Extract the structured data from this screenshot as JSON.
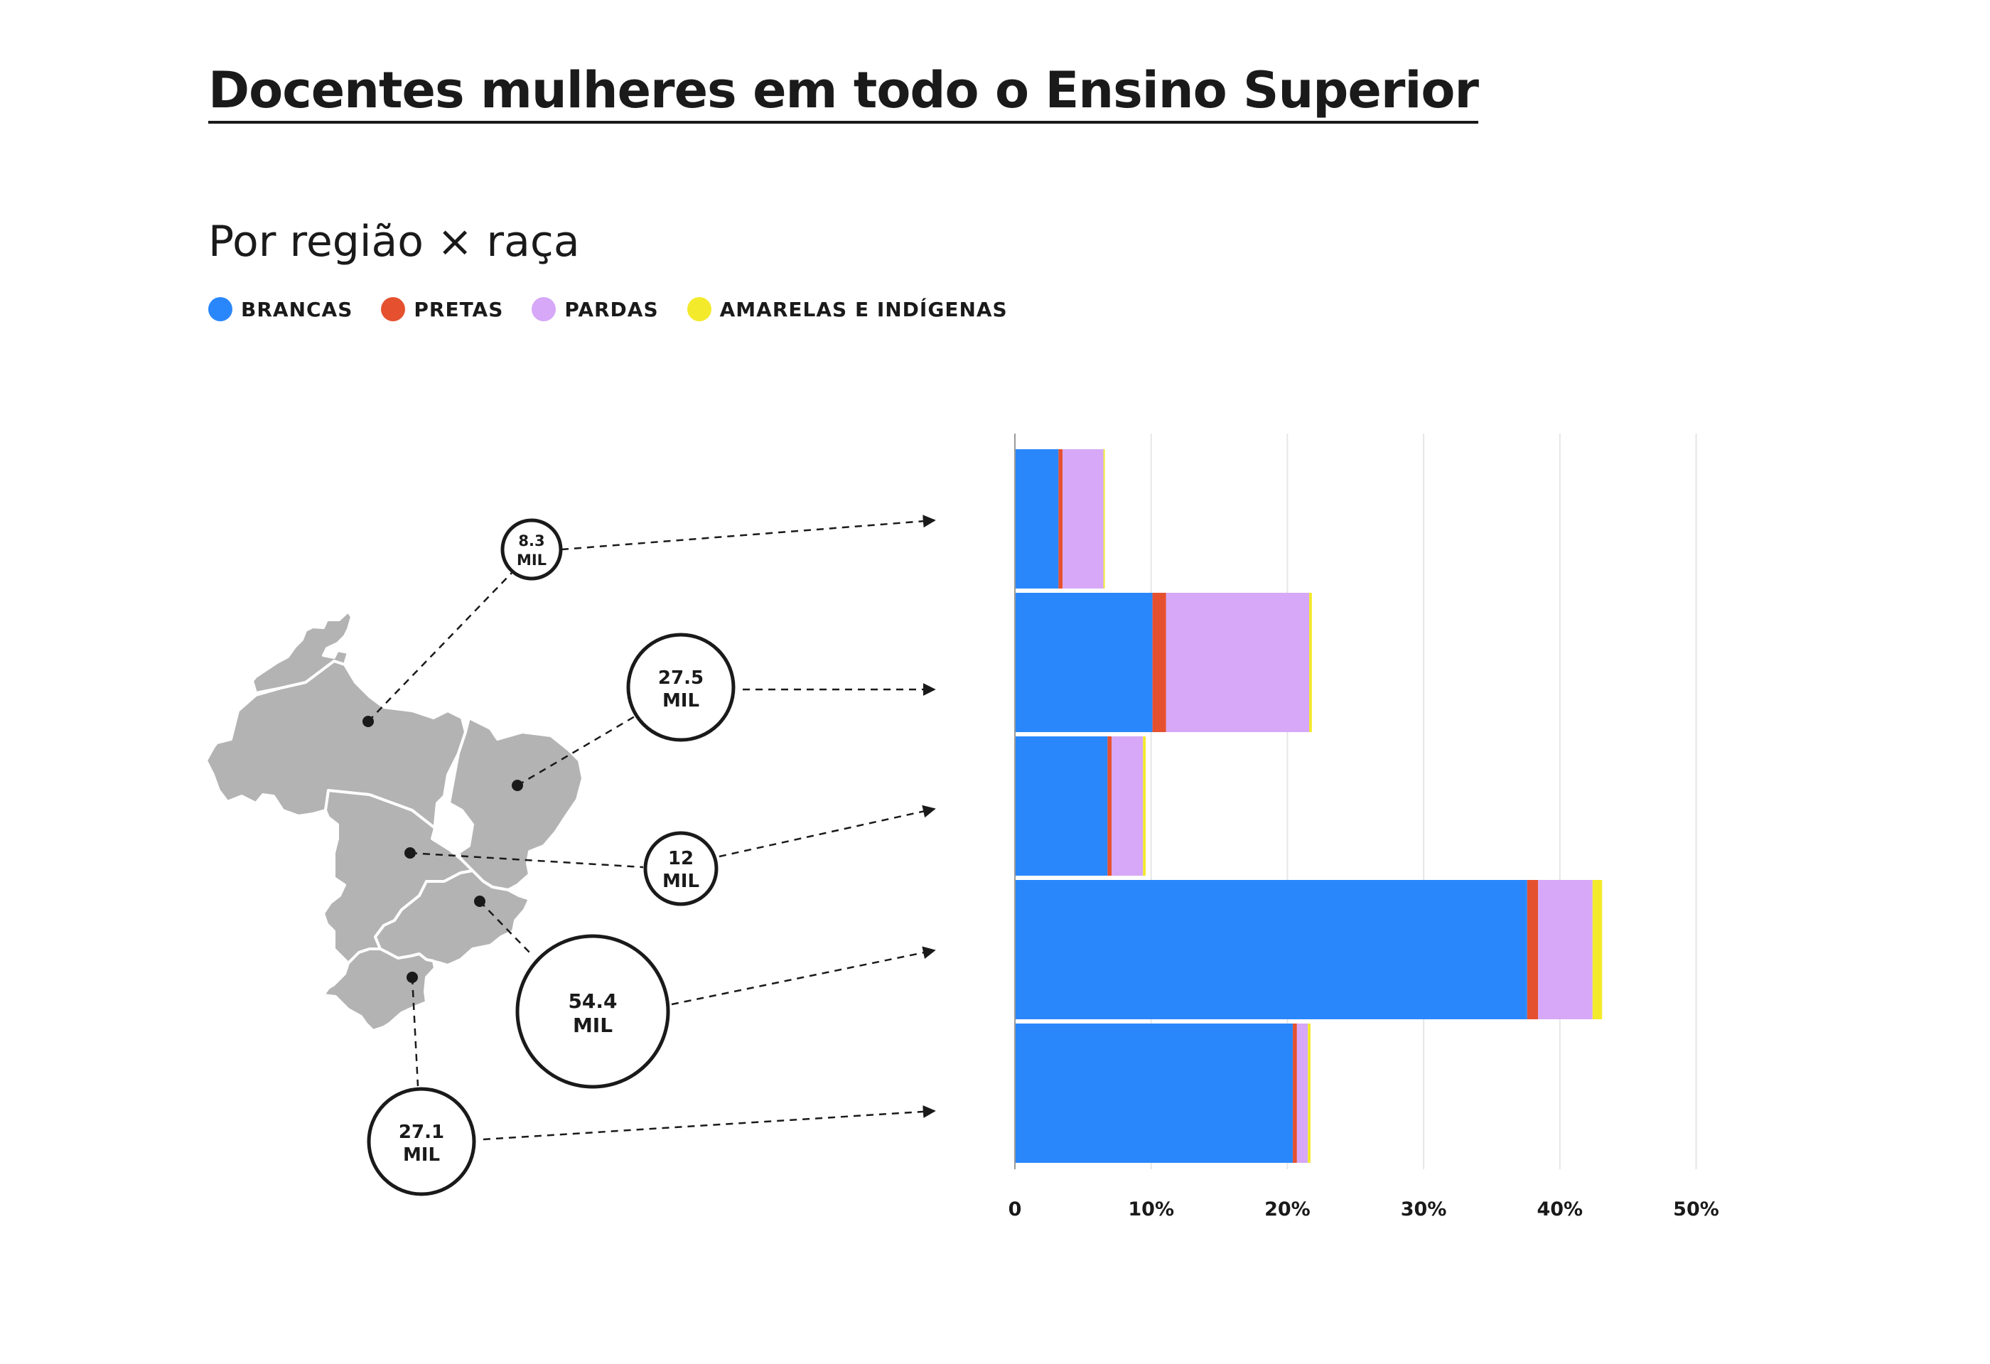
{
  "title": "Docentes mulheres em todo o Ensino Superior",
  "subtitle": "Por região × raça",
  "legend": [
    {
      "label": "BRANCAS",
      "color": "#2a87fb"
    },
    {
      "label": "PRETAS",
      "color": "#e5512f"
    },
    {
      "label": "PARDAS",
      "color": "#d6a8f7"
    },
    {
      "label": "AMARELAS E INDÍGENAS",
      "color": "#f4ea2c"
    }
  ],
  "map": {
    "icon": "brazil-regions-map",
    "color": "#b3b3b3",
    "regions": [
      {
        "value": "8.3",
        "unit": "MIL"
      },
      {
        "value": "27.5",
        "unit": "MIL"
      },
      {
        "value": "12",
        "unit": "MIL"
      },
      {
        "value": "54.4",
        "unit": "MIL"
      },
      {
        "value": "27.1",
        "unit": "MIL"
      }
    ]
  },
  "chart_data": {
    "type": "bar",
    "orientation": "horizontal",
    "stacked": true,
    "title": "",
    "xlabel": "",
    "ylabel": "",
    "xlim": [
      0,
      50
    ],
    "x_ticks": [
      "0",
      "10%",
      "20%",
      "30%",
      "40%",
      "50%"
    ],
    "x_tick_values": [
      0,
      10,
      20,
      30,
      40,
      50
    ],
    "grid": true,
    "categories": [
      "8.3 MIL",
      "27.5 MIL",
      "12 MIL",
      "54.4 MIL",
      "27.1 MIL"
    ],
    "series": [
      {
        "name": "BRANCAS",
        "color": "#2a87fb",
        "values": [
          3.2,
          10.1,
          6.8,
          37.6,
          20.4
        ]
      },
      {
        "name": "PRETAS",
        "color": "#e5512f",
        "values": [
          0.3,
          1.0,
          0.3,
          0.8,
          0.3
        ]
      },
      {
        "name": "PARDAS",
        "color": "#d6a8f7",
        "values": [
          3.0,
          10.5,
          2.3,
          4.0,
          0.8
        ]
      },
      {
        "name": "AMARELAS E INDÍGENAS",
        "color": "#f4ea2c",
        "values": [
          0.1,
          0.2,
          0.2,
          0.7,
          0.2
        ]
      }
    ]
  }
}
